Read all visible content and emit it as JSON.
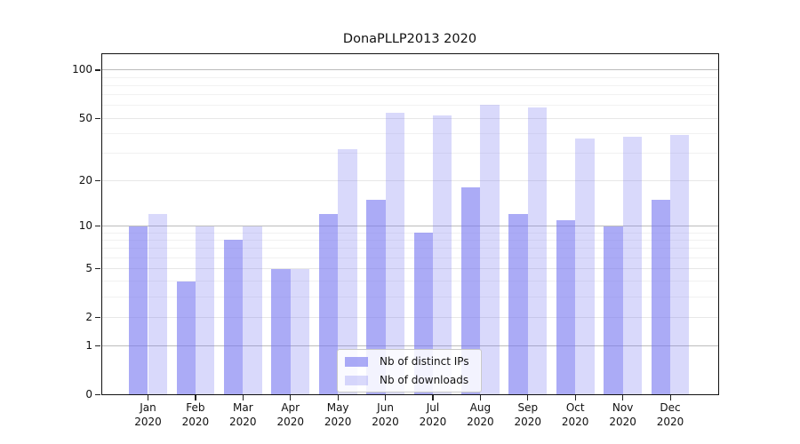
{
  "title": "DonaPLLP2013 2020",
  "chart_data": {
    "type": "bar",
    "title": "DonaPLLP2013 2020",
    "categories": [
      "Jan",
      "Feb",
      "Mar",
      "Apr",
      "May",
      "Jun",
      "Jul",
      "Aug",
      "Sep",
      "Oct",
      "Nov",
      "Dec"
    ],
    "year": "2020",
    "series": [
      {
        "name": "Nb of distinct IPs",
        "color": "rgba(120,120,240,0.62)",
        "values": [
          10,
          4,
          8,
          5,
          12,
          15,
          9,
          18,
          12,
          11,
          10,
          15
        ]
      },
      {
        "name": "Nb of downloads",
        "color": "rgba(120,120,240,0.28)",
        "values": [
          12,
          10,
          10,
          5,
          32,
          54,
          52,
          61,
          58,
          37,
          38,
          39
        ]
      }
    ],
    "xlabel": "",
    "ylabel": "",
    "yscale": "log1p",
    "ylim": [
      0,
      127
    ],
    "yticks": [
      {
        "v": 0,
        "label": "0"
      },
      {
        "v": 1,
        "label": "1"
      },
      {
        "v": 2,
        "label": "2"
      },
      {
        "v": 5,
        "label": "5"
      },
      {
        "v": 10,
        "label": "10"
      },
      {
        "v": 20,
        "label": "20"
      },
      {
        "v": 50,
        "label": "50"
      },
      {
        "v": 100,
        "label": "100"
      }
    ],
    "grid": {
      "on": true,
      "major_lines": [
        1,
        10,
        100
      ],
      "mid_lines": [
        2,
        5,
        20,
        50
      ],
      "minor_lines": [
        3,
        4,
        6,
        7,
        8,
        9,
        30,
        40,
        60,
        70,
        80,
        90
      ],
      "major_color": "#bcbcbc",
      "mid_color": "#e7e7e7",
      "minor_color": "#f1f1f1"
    },
    "legend": {
      "position": "lower center",
      "entries": [
        "Nb of distinct IPs",
        "Nb of downloads"
      ]
    }
  }
}
